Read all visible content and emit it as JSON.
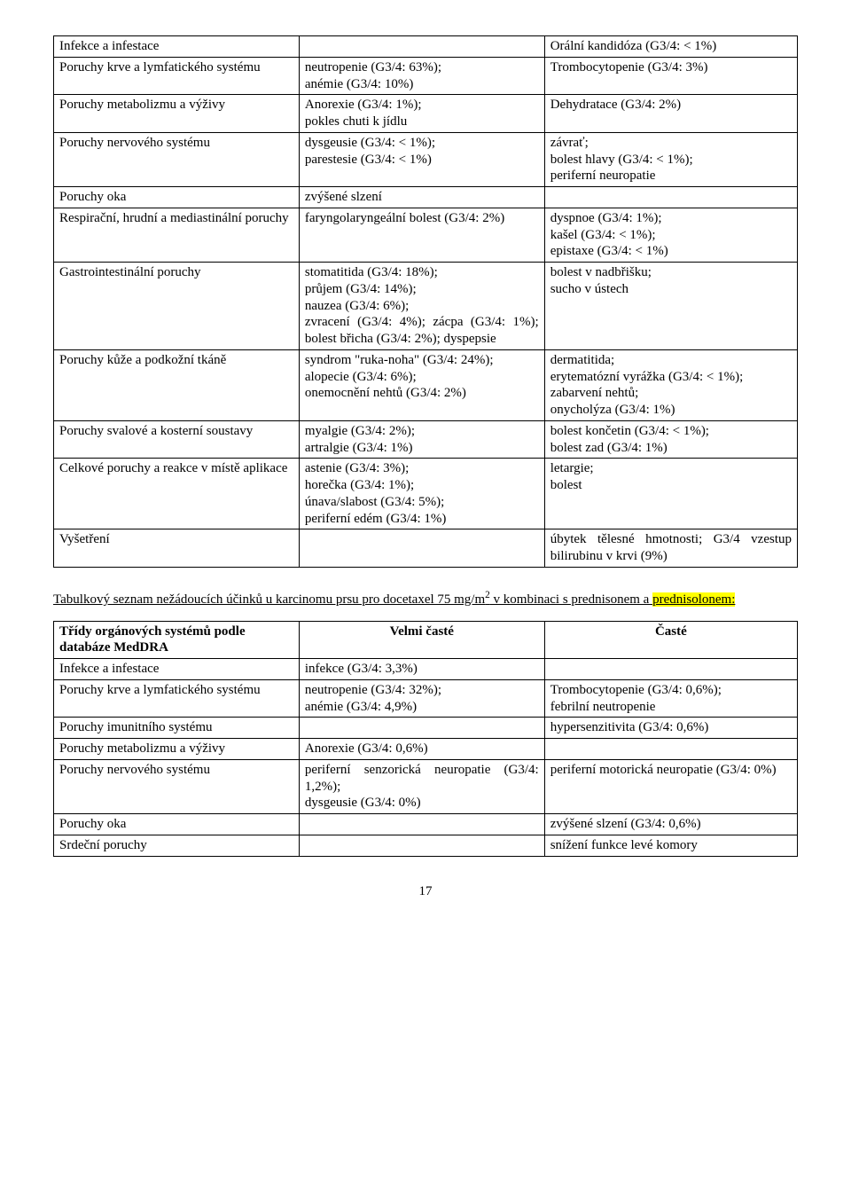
{
  "table1": {
    "rows": [
      {
        "c1": "Infekce a infestace",
        "c2": "",
        "c3": "Orální kandidóza (G3/4: < 1%)"
      },
      {
        "c1": "Poruchy krve a lymfatického systému",
        "c2": "neutropenie (G3/4: 63%);\nanémie (G3/4: 10%)",
        "c3": "Trombocytopenie (G3/4: 3%)"
      },
      {
        "c1": "Poruchy metabolizmu a výživy",
        "c2": "Anorexie (G3/4: 1%);\npokles chuti k jídlu",
        "c3": "Dehydratace (G3/4: 2%)"
      },
      {
        "c1": "Poruchy nervového systému",
        "c2": "dysgeusie (G3/4: < 1%);\nparestesie (G3/4: < 1%)",
        "c3": "závrať;\nbolest hlavy (G3/4: < 1%);\nperiferní neuropatie"
      },
      {
        "c1": "Poruchy oka",
        "c2": "zvýšené slzení",
        "c3": ""
      },
      {
        "c1": "Respirační, hrudní a mediastinální poruchy",
        "c2": "faryngolaryngeální bolest (G3/4: 2%)",
        "c3": "dyspnoe (G3/4: 1%);\nkašel (G3/4: < 1%);\nepistaxe (G3/4: < 1%)"
      },
      {
        "c1": "Gastrointestinální poruchy",
        "c2": "stomatitida (G3/4: 18%);\nprůjem (G3/4: 14%);\nnauzea (G3/4: 6%);\nzvracení (G3/4: 4%); zácpa (G3/4: 1%); bolest břicha (G3/4: 2%); dyspepsie",
        "c3": "bolest v nadbřišku;\nsucho v ústech"
      },
      {
        "c1": "Poruchy kůže a podkožní tkáně",
        "c2": "syndrom \"ruka-noha\" (G3/4: 24%);\nalopecie (G3/4: 6%);\nonemocnění nehtů (G3/4: 2%)",
        "c3": "dermatitida;\nerytematózní vyrážka (G3/4: < 1%);\nzabarvení nehtů;\nonycholýza (G3/4: 1%)"
      },
      {
        "c1": "Poruchy svalové a kosterní soustavy",
        "c2": "myalgie (G3/4: 2%);\nartralgie (G3/4: 1%)",
        "c3": "bolest končetin (G3/4: < 1%);\nbolest zad (G3/4: 1%)"
      },
      {
        "c1": "Celkové poruchy a reakce v místě aplikace",
        "c2": "astenie (G3/4: 3%);\nhorečka (G3/4: 1%);\núnava/slabost (G3/4: 5%);\nperiferní edém (G3/4: 1%)",
        "c3": "letargie;\nbolest"
      },
      {
        "c1": "Vyšetření",
        "c2": "",
        "c3": "úbytek tělesné hmotnosti; G3/4 vzestup bilirubinu v krvi (9%)"
      }
    ]
  },
  "intertext": {
    "pre": "Tabulkový seznam nežádoucích účinků u karcinomu prsu pro docetaxel 75 mg/m",
    "sup": "2",
    "mid": " v kombinaci s prednisonem a ",
    "hl": "prednisolonem:",
    "post": ""
  },
  "table2": {
    "header": {
      "c1": "Třídy orgánových systémů podle databáze MedDRA",
      "c2": "Velmi časté",
      "c3": "Časté"
    },
    "rows": [
      {
        "c1": "Infekce a infestace",
        "c2": "infekce (G3/4: 3,3%)",
        "c3": ""
      },
      {
        "c1": "Poruchy krve a lymfatického systému",
        "c2": "neutropenie (G3/4: 32%);\nanémie (G3/4: 4,9%)",
        "c3": "Trombocytopenie (G3/4: 0,6%);\nfebrilní neutropenie"
      },
      {
        "c1": "Poruchy imunitního systému",
        "c2": "",
        "c3": "hypersenzitivita (G3/4: 0,6%)"
      },
      {
        "c1": "Poruchy metabolizmu a výživy",
        "c2": "Anorexie (G3/4: 0,6%)",
        "c3": ""
      },
      {
        "c1": "Poruchy nervového systému",
        "c2": "periferní senzorická neuropatie (G3/4: 1,2%);\ndysgeusie (G3/4: 0%)",
        "c3": "periferní motorická neuropatie (G3/4: 0%)"
      },
      {
        "c1": "Poruchy oka",
        "c2": "",
        "c3": "zvýšené slzení (G3/4: 0,6%)"
      },
      {
        "c1": "Srdeční poruchy",
        "c2": "",
        "c3": "snížení funkce levé komory"
      }
    ]
  },
  "pagenum": "17"
}
